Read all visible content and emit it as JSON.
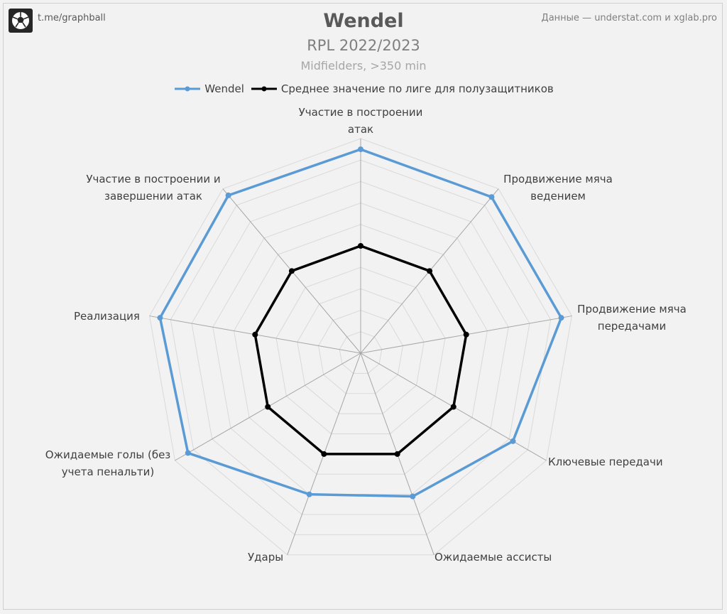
{
  "header": {
    "brand": "t.me/graphball",
    "source": "Данные — understat.com и xglab.pro",
    "title": "Wendel",
    "subtitle": "RPL 2022/2023",
    "subsubtitle": "Midfielders,  >350 min"
  },
  "colors": {
    "wendel": "#5b9bd5",
    "average": "#000000",
    "grid": "#d9d9d9",
    "spokes": "#a6a6a6"
  },
  "chart_data": {
    "type": "radar",
    "rlim": [
      0,
      10
    ],
    "grid_rings": 10,
    "categories": [
      "Участие в построении атак",
      "Продвижение мяча ведением",
      "Продвижение мяча передачами",
      "Ключевые передачи",
      "Ожидаемые ассисты",
      "Удары",
      "Ожидаемые голы (без учета пенальти)",
      "Реализация",
      "Участие в построении и завершении атак"
    ],
    "series": [
      {
        "name": "Wendel",
        "values": [
          9.5,
          9.5,
          9.5,
          8.2,
          7.1,
          7.0,
          9.3,
          9.5,
          9.6
        ]
      },
      {
        "name": "Среднее значение по лиге для полузащитников",
        "values": [
          5.0,
          5.0,
          5.0,
          5.0,
          5.0,
          5.0,
          5.0,
          5.0,
          5.0
        ]
      }
    ]
  }
}
